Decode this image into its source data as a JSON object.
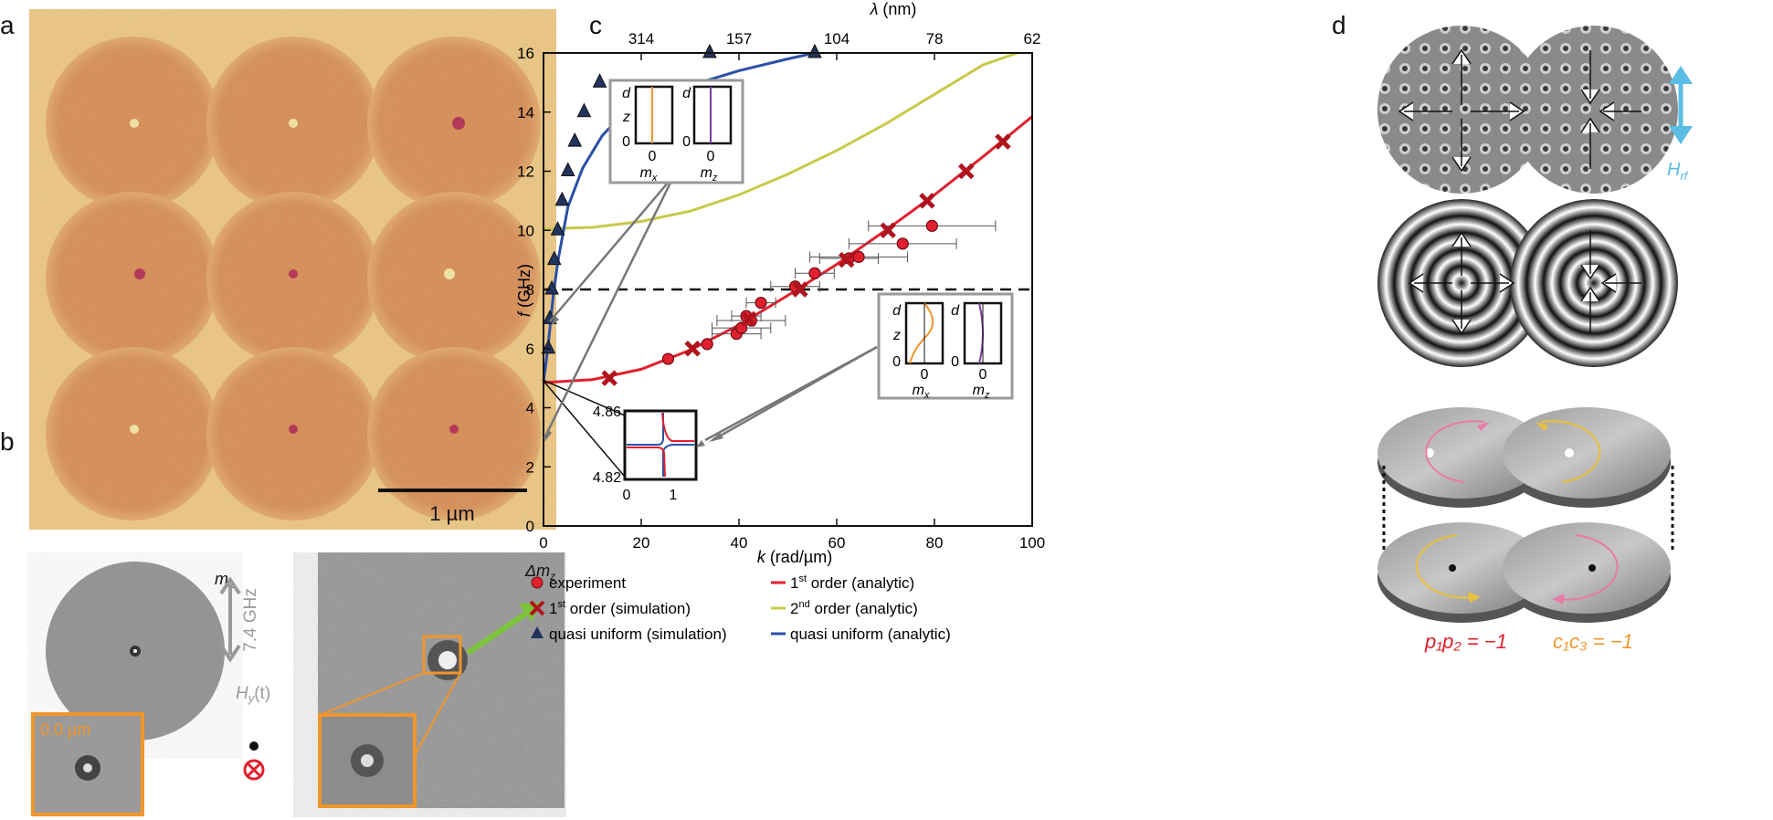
{
  "panels": {
    "a": {
      "label": "a",
      "scale_bar": "1 µm"
    },
    "b": {
      "label": "b",
      "mz_label": "m",
      "mz_sub": "z",
      "dmz_label": "Δm",
      "dmz_sub": "z",
      "freq": "7.4 GHz",
      "field": "H",
      "field_sub": "y",
      "field_arg": "(t)",
      "inset_time": "0.0 µm"
    },
    "c": {
      "label": "c"
    },
    "d": {
      "label": "d",
      "hrf": "H",
      "hrf_sub": "rf",
      "pol_eq": "p₁p₂ = −1",
      "chir_eq": "c₁c₃ = −1"
    }
  },
  "colors": {
    "experiment": "#e0202e",
    "red": "#e0202e",
    "yellow": "#c9c94a",
    "blue": "#2b4fa8",
    "orange": "#f0962b",
    "purple": "#7a3fa0",
    "cyan": "#5bbde4",
    "pink": "#e87aa8",
    "gold": "#e8c13a"
  },
  "chart_data": {
    "type": "scatter",
    "title": "",
    "xlabel": "k (rad/µm)",
    "ylabel": "f (GHz)",
    "top_label": "λ (nm)",
    "xlim": [
      0,
      100
    ],
    "ylim": [
      0,
      16
    ],
    "xticks": [
      0,
      20,
      40,
      60,
      80,
      100
    ],
    "yticks": [
      0,
      2,
      4,
      6,
      8,
      10,
      12,
      14,
      16
    ],
    "top_ticks": [
      {
        "k": 20,
        "label": "314"
      },
      {
        "k": 40,
        "label": "157"
      },
      {
        "k": 60,
        "label": "104"
      },
      {
        "k": 80,
        "label": "78"
      },
      {
        "k": 100,
        "label": "62"
      }
    ],
    "top_tick_labels": [
      "314",
      "157",
      "104",
      "78",
      "62"
    ],
    "reference_line_y": 8,
    "series": [
      {
        "name": "experiment",
        "kind": "points",
        "marker": "circle",
        "legend": "experiment",
        "x": [
          25.5,
          33.5,
          39.5,
          40.5,
          41.5,
          42.5,
          44.5,
          51.5,
          55.5,
          62.5,
          64.5,
          73.5,
          79.5
        ],
        "y": [
          5.65,
          6.15,
          6.5,
          6.7,
          7.1,
          6.95,
          7.55,
          8.1,
          8.55,
          9.05,
          9.1,
          9.55,
          10.15
        ],
        "xerr": [
          0,
          0,
          5,
          6,
          3,
          7,
          3,
          5,
          4,
          6,
          10,
          11,
          13
        ]
      },
      {
        "name": "1st order (simulation)",
        "kind": "points",
        "marker": "x",
        "legend": "1st order (simulation)",
        "x": [
          13.5,
          30.5,
          42,
          52.5,
          62,
          70.5,
          78.5,
          86.5,
          94
        ],
        "y": [
          5.0,
          6.0,
          7.0,
          8.0,
          9.0,
          10.0,
          11.0,
          12.0,
          13.0
        ]
      },
      {
        "name": "quasi uniform (simulation)",
        "kind": "points",
        "marker": "triangle",
        "legend": "quasi uniform (simulation)",
        "x": [
          1.0,
          1.3,
          1.7,
          2.2,
          2.9,
          3.8,
          5.0,
          6.4,
          8.3,
          11.5,
          34,
          55.5
        ],
        "y": [
          6.0,
          7.0,
          8.0,
          9.0,
          10.0,
          11.0,
          12.0,
          13.0,
          14.0,
          15.0,
          16.0,
          16.0
        ]
      },
      {
        "name": "1st order (analytic)",
        "kind": "line",
        "legend": "1st order (analytic)",
        "x": [
          0,
          10,
          20,
          30,
          40,
          50,
          60,
          70,
          80,
          90,
          100
        ],
        "y": [
          4.85,
          4.95,
          5.3,
          5.95,
          6.8,
          7.8,
          8.85,
          10.0,
          11.2,
          12.5,
          13.85
        ]
      },
      {
        "name": "2nd order (analytic)",
        "kind": "line",
        "legend": "2nd order (analytic)",
        "x": [
          0,
          10,
          20,
          30,
          40,
          50,
          60,
          70,
          80,
          90,
          97
        ],
        "y": [
          10.05,
          10.1,
          10.3,
          10.65,
          11.2,
          11.9,
          12.7,
          13.6,
          14.6,
          15.6,
          16.0
        ]
      },
      {
        "name": "quasi uniform (analytic)",
        "kind": "line",
        "legend": "quasi uniform (analytic)",
        "x": [
          0,
          0.5,
          1,
          2,
          3,
          5,
          8,
          12,
          16,
          20,
          25,
          30,
          40,
          50,
          55.5
        ],
        "y": [
          4.9,
          5.5,
          6.2,
          7.8,
          9.0,
          10.8,
          12.1,
          13.2,
          13.9,
          14.3,
          14.6,
          14.9,
          15.4,
          15.8,
          16.0
        ]
      }
    ],
    "legend": [
      {
        "marker": "circle",
        "label": "experiment"
      },
      {
        "marker": "x",
        "label": "1",
        "sup": "st",
        "rest": " order (simulation)"
      },
      {
        "marker": "triangle",
        "label": "quasi uniform (simulation)"
      },
      {
        "marker": "line-red",
        "label": "1",
        "sup": "st",
        "rest": " order (analytic)"
      },
      {
        "marker": "line-yellow",
        "label": "2",
        "sup": "nd",
        "rest": " order (analytic)"
      },
      {
        "marker": "line-blue",
        "label": "quasi uniform (analytic)"
      }
    ],
    "inset_zoom": {
      "ytop": "4.86",
      "ybottom": "4.82",
      "xleft": "0",
      "xright": "1"
    },
    "inset_profiles_top": {
      "d": "d",
      "z": "z",
      "zero": "0",
      "mx": "m",
      "mx_sub": "x",
      "mz": "m",
      "mz_sub": "z"
    },
    "inset_profiles_bottom": {
      "d": "d",
      "z": "z",
      "zero": "0",
      "mx": "m",
      "mx_sub": "x",
      "mz": "m",
      "mz_sub": "z"
    }
  }
}
